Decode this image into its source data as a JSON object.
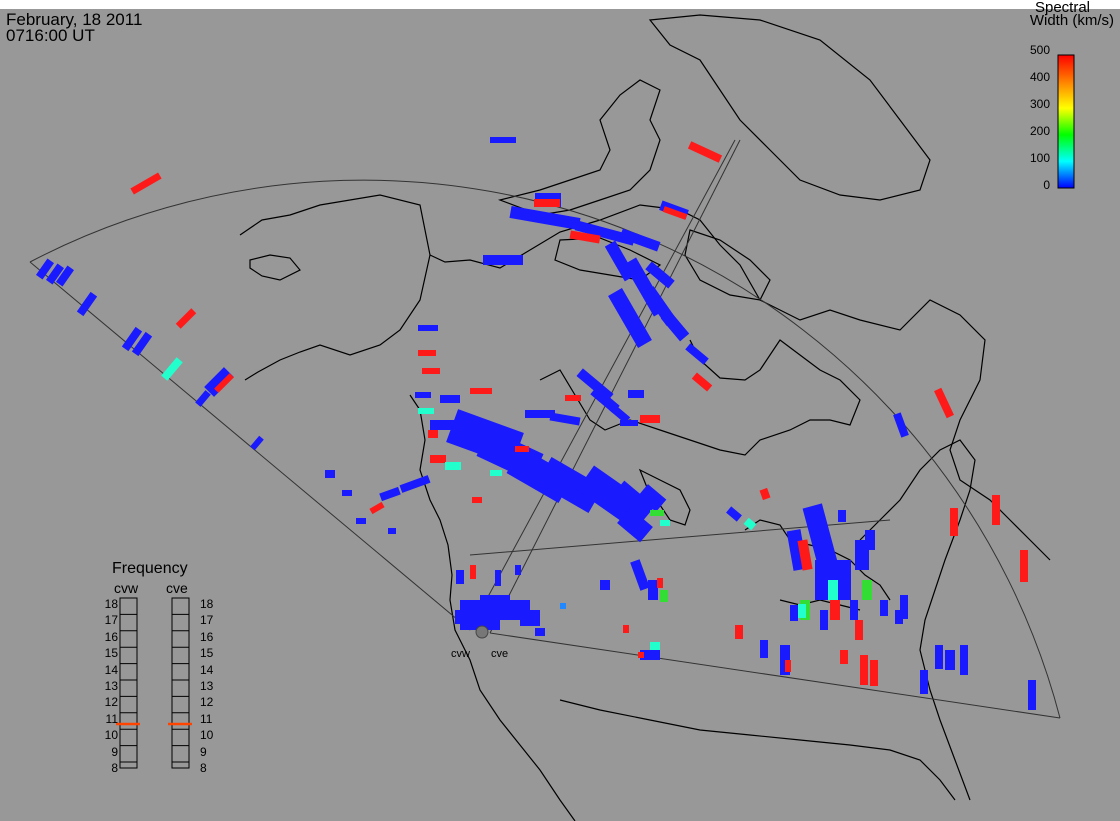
{
  "header": {
    "date": "February, 18 2011",
    "time": "0716:00 UT"
  },
  "colorbar": {
    "title_line1": "Spectral",
    "title_line2": "Width (km/s)",
    "ticks": [
      "500",
      "400",
      "300",
      "200",
      "100",
      "0"
    ]
  },
  "frequency_panel": {
    "title": "Frequency",
    "radars": [
      "cvw",
      "cve"
    ],
    "scale": [
      "18",
      "17",
      "16",
      "15",
      "14",
      "13",
      "12",
      "11",
      "10",
      "9",
      "8"
    ],
    "current_value": "11"
  },
  "radar_labels": [
    "cvw",
    "cve"
  ],
  "colors": {
    "background": "#989898",
    "scatter_low": "#1a1aff",
    "scatter_high": "#ff1a1a",
    "marker": "#ff4400"
  }
}
